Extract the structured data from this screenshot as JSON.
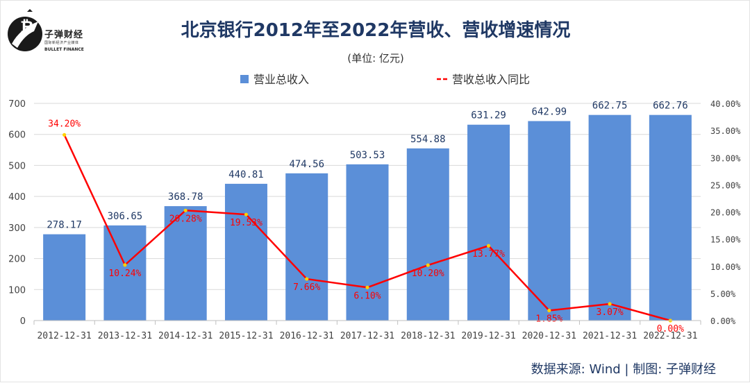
{
  "logo": {
    "brand": "子弹财经",
    "subtitle": "国际新经济产业媒体",
    "english": "BULLET FINANCE"
  },
  "header": {
    "title": "北京银行2012年至2022年营收、营收增速情况",
    "unit": "(单位: 亿元)"
  },
  "footer": {
    "source": "数据来源: Wind  |  制图: 子弹财经"
  },
  "colors": {
    "bar": "#5b8fd8",
    "line": "#ff0000",
    "marker": "#ffd000",
    "bar_label": "#1f3864",
    "axis_text": "#404040",
    "grid": "#d9d9d9"
  },
  "chart_data": {
    "type": "bar",
    "categories": [
      "2012-12-31",
      "2013-12-31",
      "2014-12-31",
      "2015-12-31",
      "2016-12-31",
      "2017-12-31",
      "2018-12-31",
      "2019-12-31",
      "2020-12-31",
      "2021-12-31",
      "2022-12-31"
    ],
    "series": [
      {
        "name": "营业总收入",
        "type": "bar",
        "axis": "left",
        "values": [
          278.17,
          306.65,
          368.78,
          440.81,
          474.56,
          503.53,
          554.88,
          631.29,
          642.99,
          662.75,
          662.76
        ],
        "labels": [
          "278.17",
          "306.65",
          "368.78",
          "440.81",
          "474.56",
          "503.53",
          "554.88",
          "631.29",
          "642.99",
          "662.75",
          "662.76"
        ]
      },
      {
        "name": "营收总收入同比",
        "type": "line",
        "axis": "right",
        "values": [
          34.2,
          10.24,
          20.28,
          19.53,
          7.66,
          6.1,
          10.2,
          13.77,
          1.85,
          3.07,
          0.0
        ],
        "labels": [
          "34.20%",
          "10.24%",
          "20.28%",
          "19.53%",
          "7.66%",
          "6.10%",
          "10.20%",
          "13.77%",
          "1.85%",
          "3.07%",
          "0.00%"
        ]
      }
    ],
    "y_left": {
      "min": 0,
      "max": 700,
      "ticks": [
        "0",
        "100",
        "200",
        "300",
        "400",
        "500",
        "600",
        "700"
      ]
    },
    "y_right": {
      "min": 0,
      "max": 40,
      "ticks": [
        "0.00%",
        "5.00%",
        "10.00%",
        "15.00%",
        "20.00%",
        "25.00%",
        "30.00%",
        "35.00%",
        "40.00%"
      ]
    },
    "grid": true,
    "legend_position": "top"
  }
}
